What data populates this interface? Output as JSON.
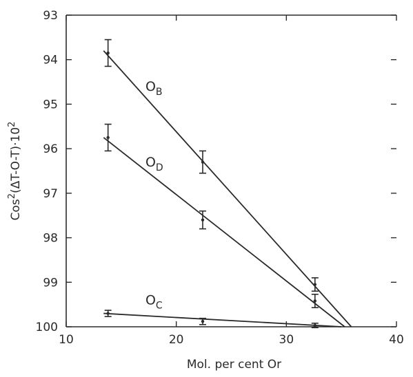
{
  "chart_data": {
    "type": "scatter",
    "xlabel": "Mol. per cent Or",
    "ylabel": "Cos²(ΔT-O-T)·10²",
    "ylabel_parts": {
      "main": "Cos",
      "sup1": "2",
      "mid": "(ΔT-O-T)·10",
      "sup2": "2"
    },
    "xlim": [
      10,
      40
    ],
    "ylim": [
      93,
      100
    ],
    "y_inverted": true,
    "x_ticks": [
      10,
      20,
      30,
      40
    ],
    "y_ticks": [
      93,
      94,
      95,
      96,
      97,
      98,
      99,
      100
    ],
    "series": [
      {
        "name": "OB",
        "label_main": "O",
        "label_sub": "B",
        "label_at": [
          17.2,
          94.7
        ],
        "points": [
          {
            "x": 13.8,
            "y": 93.85,
            "err": 0.3
          },
          {
            "x": 22.4,
            "y": 96.3,
            "err": 0.25
          },
          {
            "x": 32.6,
            "y": 99.05,
            "err": 0.15
          }
        ],
        "fit": [
          [
            13.4,
            93.8
          ],
          [
            35.9,
            100.0
          ]
        ]
      },
      {
        "name": "OD",
        "label_main": "O",
        "label_sub": "D",
        "label_at": [
          17.2,
          96.4
        ],
        "points": [
          {
            "x": 13.8,
            "y": 95.75,
            "err": 0.3
          },
          {
            "x": 22.4,
            "y": 97.6,
            "err": 0.2
          },
          {
            "x": 32.6,
            "y": 99.42,
            "err": 0.15
          }
        ],
        "fit": [
          [
            13.4,
            95.75
          ],
          [
            35.3,
            100.0
          ]
        ]
      },
      {
        "name": "OC",
        "label_main": "O",
        "label_sub": "C",
        "label_at": [
          17.2,
          99.5
        ],
        "points": [
          {
            "x": 13.8,
            "y": 99.7,
            "err": 0.07
          },
          {
            "x": 22.4,
            "y": 99.88,
            "err": 0.07
          },
          {
            "x": 32.6,
            "y": 99.97,
            "err": 0.05
          }
        ],
        "fit": [
          [
            13.4,
            99.7
          ],
          [
            35.0,
            100.0
          ]
        ]
      }
    ]
  }
}
